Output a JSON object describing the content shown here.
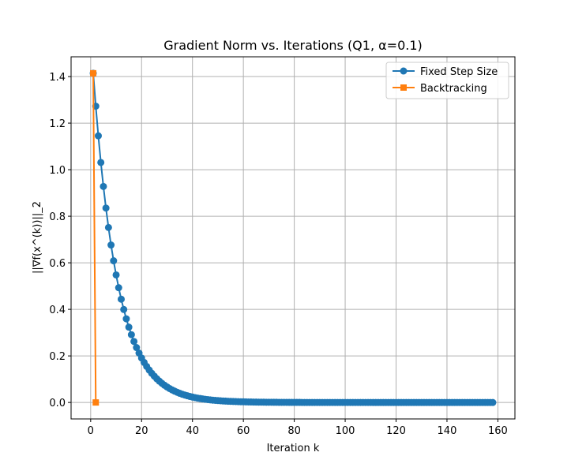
{
  "chart_data": {
    "type": "line",
    "title": "Gradient Norm vs. Iterations (Q1, α=0.1)",
    "xlabel": "Iteration k",
    "ylabel": "||∇f(x^(k))||_2",
    "xlim": [
      -7.7,
      166.7
    ],
    "ylim": [
      -0.0707,
      1.4849
    ],
    "xticks": [
      0,
      20,
      40,
      60,
      80,
      100,
      120,
      140,
      160
    ],
    "yticks": [
      0.0,
      0.2,
      0.4,
      0.6,
      0.8,
      1.0,
      1.2,
      1.4
    ],
    "xtick_labels": [
      "0",
      "20",
      "40",
      "60",
      "80",
      "100",
      "120",
      "140",
      "160"
    ],
    "ytick_labels": [
      "0.0",
      "0.2",
      "0.4",
      "0.6",
      "0.8",
      "1.0",
      "1.2",
      "1.4"
    ],
    "grid": true,
    "legend_position": "top-right",
    "series": [
      {
        "name": "Fixed Step Size",
        "color": "#1f77b4",
        "marker": "circle",
        "x_start": 1,
        "x_end": 158,
        "y_start": 1.4142,
        "decay_per_step": 0.9,
        "note": "y_k = 1.4142 * 0.9^(k-1)"
      },
      {
        "name": "Backtracking",
        "color": "#ff7f0e",
        "marker": "square",
        "x": [
          1,
          2
        ],
        "y": [
          1.4142,
          0.0
        ]
      }
    ]
  }
}
